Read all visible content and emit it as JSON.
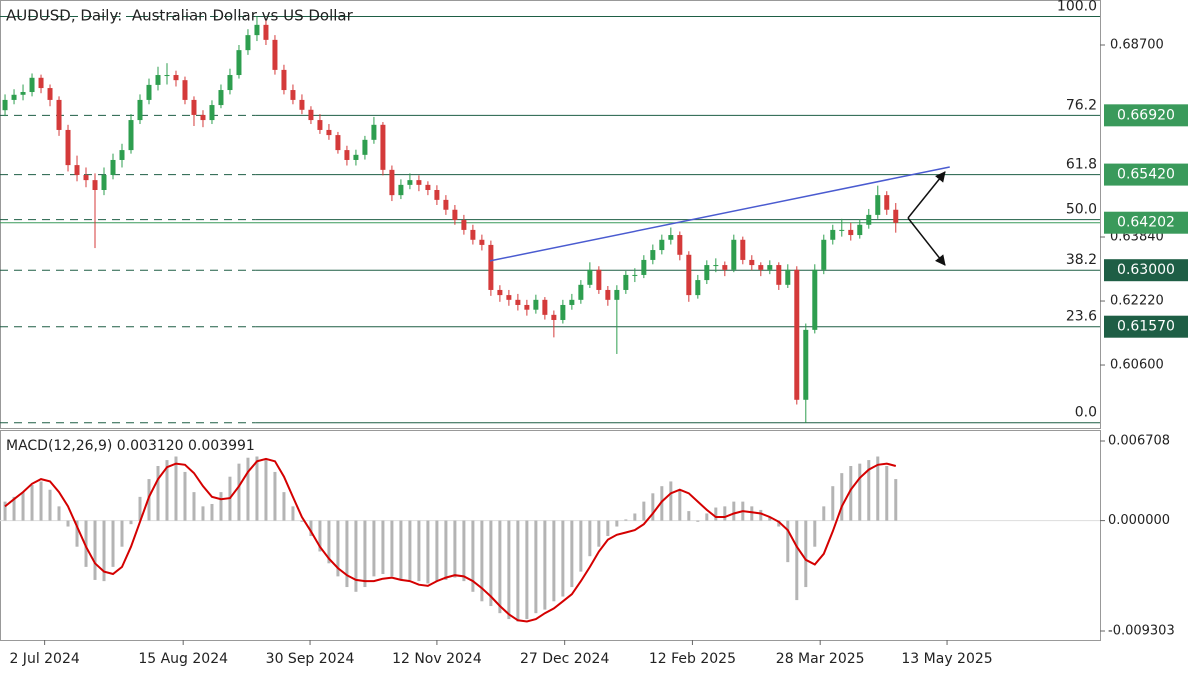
{
  "chart_data": {
    "type": "candlestick",
    "title": "AUDUSD, Daily:  Australian Dollar vs US Dollar",
    "xlim": [
      -0.56,
      121.7
    ],
    "xticks": [
      {
        "value": 4.4,
        "label": "2 Jul 2024"
      },
      {
        "value": 19.8,
        "label": "15 Aug 2024"
      },
      {
        "value": 33.9,
        "label": "30 Sep 2024"
      },
      {
        "value": 48,
        "label": "12 Nov 2024"
      },
      {
        "value": 62.2,
        "label": "27 Dec 2024"
      },
      {
        "value": 76.4,
        "label": "12 Feb 2025"
      },
      {
        "value": 90.6,
        "label": "28 Mar 2025"
      },
      {
        "value": 104.7,
        "label": "13 May 2025"
      }
    ],
    "ylim": [
      0.59006,
      0.69839
    ],
    "yticks": [
      {
        "value": 0.687,
        "label": "0.68700"
      },
      {
        "value": 0.6384,
        "label": "0.63840"
      },
      {
        "value": 0.6222,
        "label": "0.62220"
      },
      {
        "value": 0.606,
        "label": "0.60600"
      }
    ],
    "colors": {
      "up": "#2e9e4f",
      "down": "#d43a3a"
    },
    "ohlc": [
      [
        0.6705,
        0.6745,
        0.669,
        0.6731
      ],
      [
        0.6731,
        0.6758,
        0.672,
        0.6744
      ],
      [
        0.6744,
        0.677,
        0.673,
        0.6751
      ],
      [
        0.6751,
        0.6798,
        0.674,
        0.6787
      ],
      [
        0.6787,
        0.6795,
        0.6748,
        0.6761
      ],
      [
        0.6761,
        0.677,
        0.6715,
        0.6731
      ],
      [
        0.6731,
        0.674,
        0.664,
        0.6655
      ],
      [
        0.6655,
        0.6668,
        0.655,
        0.6566
      ],
      [
        0.6566,
        0.659,
        0.6525,
        0.6541
      ],
      [
        0.6541,
        0.656,
        0.651,
        0.6528
      ],
      [
        0.6528,
        0.6545,
        0.6356,
        0.6503
      ],
      [
        0.6503,
        0.656,
        0.649,
        0.6541
      ],
      [
        0.6541,
        0.6595,
        0.653,
        0.6579
      ],
      [
        0.6579,
        0.662,
        0.656,
        0.6604
      ],
      [
        0.6604,
        0.6695,
        0.6595,
        0.668
      ],
      [
        0.668,
        0.6745,
        0.667,
        0.6731
      ],
      [
        0.6731,
        0.6785,
        0.672,
        0.6769
      ],
      [
        0.6769,
        0.6815,
        0.6755,
        0.6794
      ],
      [
        0.6794,
        0.6824,
        0.677,
        0.6794
      ],
      [
        0.6794,
        0.6805,
        0.6765,
        0.6781
      ],
      [
        0.6781,
        0.679,
        0.672,
        0.6731
      ],
      [
        0.6731,
        0.674,
        0.6665,
        0.6693
      ],
      [
        0.6693,
        0.6705,
        0.6662,
        0.668
      ],
      [
        0.668,
        0.673,
        0.667,
        0.6718
      ],
      [
        0.6718,
        0.677,
        0.671,
        0.6756
      ],
      [
        0.6756,
        0.681,
        0.6745,
        0.6794
      ],
      [
        0.6794,
        0.687,
        0.6785,
        0.6857
      ],
      [
        0.6857,
        0.691,
        0.6845,
        0.6895
      ],
      [
        0.6895,
        0.6942,
        0.688,
        0.6921
      ],
      [
        0.6921,
        0.6935,
        0.687,
        0.6883
      ],
      [
        0.6883,
        0.6895,
        0.6795,
        0.6807
      ],
      [
        0.6807,
        0.682,
        0.6745,
        0.6756
      ],
      [
        0.6756,
        0.677,
        0.672,
        0.6731
      ],
      [
        0.6731,
        0.6745,
        0.6695,
        0.6706
      ],
      [
        0.6706,
        0.6715,
        0.667,
        0.668
      ],
      [
        0.668,
        0.6695,
        0.6645,
        0.6655
      ],
      [
        0.6655,
        0.667,
        0.663,
        0.6642
      ],
      [
        0.6642,
        0.665,
        0.6595,
        0.6604
      ],
      [
        0.6604,
        0.6615,
        0.6565,
        0.6579
      ],
      [
        0.6579,
        0.6605,
        0.6565,
        0.6592
      ],
      [
        0.6592,
        0.664,
        0.658,
        0.663
      ],
      [
        0.663,
        0.6688,
        0.662,
        0.6668
      ],
      [
        0.6668,
        0.6675,
        0.654,
        0.6554
      ],
      [
        0.6554,
        0.6565,
        0.6475,
        0.649
      ],
      [
        0.649,
        0.653,
        0.648,
        0.6516
      ],
      [
        0.6516,
        0.6545,
        0.6505,
        0.6528
      ],
      [
        0.6528,
        0.654,
        0.65,
        0.6516
      ],
      [
        0.6516,
        0.6525,
        0.649,
        0.6503
      ],
      [
        0.6503,
        0.6515,
        0.6465,
        0.6478
      ],
      [
        0.6478,
        0.649,
        0.644,
        0.6453
      ],
      [
        0.6453,
        0.6465,
        0.6415,
        0.6427
      ],
      [
        0.6427,
        0.644,
        0.639,
        0.6402
      ],
      [
        0.6402,
        0.6415,
        0.6365,
        0.6377
      ],
      [
        0.6377,
        0.639,
        0.635,
        0.6364
      ],
      [
        0.6364,
        0.6375,
        0.6235,
        0.625
      ],
      [
        0.625,
        0.6262,
        0.622,
        0.6237
      ],
      [
        0.6237,
        0.625,
        0.621,
        0.6225
      ],
      [
        0.6225,
        0.624,
        0.6198,
        0.6212
      ],
      [
        0.6212,
        0.6225,
        0.6185,
        0.62
      ],
      [
        0.62,
        0.6238,
        0.619,
        0.6225
      ],
      [
        0.6225,
        0.6232,
        0.6175,
        0.6187
      ],
      [
        0.6187,
        0.6198,
        0.613,
        0.6174
      ],
      [
        0.6174,
        0.6225,
        0.6165,
        0.6212
      ],
      [
        0.6212,
        0.624,
        0.62,
        0.6225
      ],
      [
        0.6225,
        0.6275,
        0.6215,
        0.6263
      ],
      [
        0.6263,
        0.632,
        0.6255,
        0.6301
      ],
      [
        0.6301,
        0.631,
        0.624,
        0.625
      ],
      [
        0.625,
        0.626,
        0.621,
        0.6225
      ],
      [
        0.6225,
        0.6262,
        0.6088,
        0.625
      ],
      [
        0.625,
        0.6298,
        0.624,
        0.6288
      ],
      [
        0.6288,
        0.6305,
        0.627,
        0.6288
      ],
      [
        0.6288,
        0.6338,
        0.628,
        0.6326
      ],
      [
        0.6326,
        0.6365,
        0.6315,
        0.6351
      ],
      [
        0.6351,
        0.639,
        0.634,
        0.6377
      ],
      [
        0.6377,
        0.6408,
        0.6365,
        0.6389
      ],
      [
        0.6389,
        0.6398,
        0.6325,
        0.6339
      ],
      [
        0.6339,
        0.6348,
        0.622,
        0.6237
      ],
      [
        0.6237,
        0.6288,
        0.6228,
        0.6275
      ],
      [
        0.6275,
        0.6325,
        0.6265,
        0.6313
      ],
      [
        0.6313,
        0.633,
        0.6295,
        0.6313
      ],
      [
        0.6313,
        0.6322,
        0.6285,
        0.6301
      ],
      [
        0.6301,
        0.639,
        0.6295,
        0.6377
      ],
      [
        0.6377,
        0.6385,
        0.6315,
        0.6326
      ],
      [
        0.6326,
        0.6338,
        0.63,
        0.6313
      ],
      [
        0.6313,
        0.632,
        0.6285,
        0.6301
      ],
      [
        0.6301,
        0.6325,
        0.629,
        0.6313
      ],
      [
        0.6313,
        0.632,
        0.625,
        0.6263
      ],
      [
        0.6263,
        0.6315,
        0.6255,
        0.6301
      ],
      [
        0.6301,
        0.631,
        0.596,
        0.5972
      ],
      [
        0.5972,
        0.6165,
        0.5914,
        0.6149
      ],
      [
        0.6149,
        0.6315,
        0.614,
        0.6301
      ],
      [
        0.6301,
        0.639,
        0.629,
        0.6377
      ],
      [
        0.6377,
        0.6415,
        0.6365,
        0.6402
      ],
      [
        0.6402,
        0.643,
        0.6385,
        0.6402
      ],
      [
        0.6402,
        0.642,
        0.6375,
        0.6389
      ],
      [
        0.6389,
        0.6428,
        0.638,
        0.6415
      ],
      [
        0.6415,
        0.6455,
        0.6405,
        0.644
      ],
      [
        0.644,
        0.6514,
        0.643,
        0.649
      ],
      [
        0.649,
        0.65,
        0.644,
        0.6453
      ],
      [
        0.6453,
        0.647,
        0.6395,
        0.642
      ]
    ],
    "current_price": {
      "value": 0.64202,
      "label": "0.64202",
      "color": "#3a9a5b"
    },
    "fibonacci": {
      "x_start": 27.8,
      "color": "#1e5e45",
      "levels": [
        {
          "label": "100.0",
          "price": 0.6942
        },
        {
          "label": "76.2",
          "price": 0.6692,
          "price_label": "0.66920",
          "tag_color": "#3a9a5b"
        },
        {
          "label": "61.8",
          "price": 0.6542,
          "price_label": "0.65420",
          "tag_color": "#3a9a5b"
        },
        {
          "label": "50.0",
          "price": 0.6428
        },
        {
          "label": "38.2",
          "price": 0.63,
          "price_label": "0.63000",
          "tag_color": "#1e5e45"
        },
        {
          "label": "23.6",
          "price": 0.6157,
          "price_label": "0.61570",
          "tag_color": "#1e5e45"
        },
        {
          "label": "0.0",
          "price": 0.5914
        }
      ]
    },
    "trendline": {
      "x": [
        53.9,
        105
      ],
      "y": [
        0.63235,
        0.65613
      ],
      "color": "#4a5bd0"
    },
    "macd": {
      "title": "MACD(12,26,9) 0.003120 0.003991",
      "ylim": [
        -0.010062,
        0.007635
      ],
      "yticks": [
        {
          "value": 0.006708,
          "label": "0.006708"
        },
        {
          "value": 0,
          "label": "0.000000"
        },
        {
          "value": -0.009303,
          "label": "-0.009303"
        }
      ],
      "series": [
        {
          "type": "bar",
          "color": "#b4b4b4",
          "values": [
            0.0016,
            0.002,
            0.0024,
            0.003,
            0.0033,
            0.0026,
            0.0012,
            -0.0005,
            -0.0022,
            -0.0039,
            -0.005,
            -0.0051,
            -0.0039,
            -0.0022,
            -0.0003,
            0.002,
            0.0035,
            0.0046,
            0.0051,
            0.0054,
            0.0041,
            0.0024,
            0.0012,
            0.0014,
            0.0024,
            0.0037,
            0.0048,
            0.0053,
            0.0054,
            0.0051,
            0.0041,
            0.0024,
            0.0012,
            -0.0001,
            -0.0013,
            -0.0026,
            -0.0036,
            -0.0047,
            -0.0056,
            -0.006,
            -0.0056,
            -0.0047,
            -0.0045,
            -0.0047,
            -0.005,
            -0.005,
            -0.0051,
            -0.0053,
            -0.0051,
            -0.005,
            -0.0048,
            -0.0051,
            -0.006,
            -0.0068,
            -0.0072,
            -0.0078,
            -0.0083,
            -0.0085,
            -0.0083,
            -0.0078,
            -0.0075,
            -0.0068,
            -0.0064,
            -0.0056,
            -0.0043,
            -0.003,
            -0.0022,
            -0.0013,
            -0.0005,
            0.0001,
            0.0006,
            0.0016,
            0.0023,
            0.0029,
            0.0033,
            0.0026,
            0.0008,
            -0.0001,
            0.0006,
            0.0011,
            0.0012,
            0.0016,
            0.0016,
            0.0012,
            0.0009,
            0.0003,
            -0.0005,
            -0.0035,
            -0.0067,
            -0.0056,
            -0.0022,
            0.0012,
            0.0029,
            0.004,
            0.0046,
            0.0048,
            0.0051,
            0.0054,
            0.0046,
            0.0035
          ]
        },
        {
          "type": "line",
          "color": "#d40000",
          "values": [
            0.0012,
            0.0018,
            0.0024,
            0.0031,
            0.0035,
            0.0033,
            0.0024,
            0.0012,
            -0.0005,
            -0.0022,
            -0.0036,
            -0.0043,
            -0.0045,
            -0.0039,
            -0.0022,
            -0.0001,
            0.002,
            0.0035,
            0.0045,
            0.0048,
            0.0047,
            0.004,
            0.0029,
            0.002,
            0.0018,
            0.0019,
            0.0029,
            0.0041,
            0.005,
            0.0052,
            0.005,
            0.0037,
            0.002,
            0.0003,
            -0.0009,
            -0.0022,
            -0.0032,
            -0.004,
            -0.0046,
            -0.005,
            -0.0051,
            -0.0051,
            -0.0049,
            -0.0048,
            -0.005,
            -0.0051,
            -0.0054,
            -0.0055,
            -0.0051,
            -0.0048,
            -0.0046,
            -0.0047,
            -0.0051,
            -0.0057,
            -0.0064,
            -0.0072,
            -0.0079,
            -0.0084,
            -0.0085,
            -0.0083,
            -0.0078,
            -0.0074,
            -0.0068,
            -0.0062,
            -0.0051,
            -0.0039,
            -0.0026,
            -0.0016,
            -0.0012,
            -0.001,
            -0.0008,
            -0.0003,
            0.0006,
            0.0016,
            0.0023,
            0.0026,
            0.0023,
            0.0016,
            0.0009,
            0.0003,
            0.0003,
            0.0006,
            0.0008,
            0.0007,
            0.0006,
            0.0003,
            -0.0001,
            -0.0008,
            -0.0022,
            -0.0033,
            -0.0037,
            -0.0028,
            -0.0009,
            0.0012,
            0.0026,
            0.0036,
            0.0043,
            0.0047,
            0.0048,
            0.0046
          ]
        }
      ]
    }
  }
}
